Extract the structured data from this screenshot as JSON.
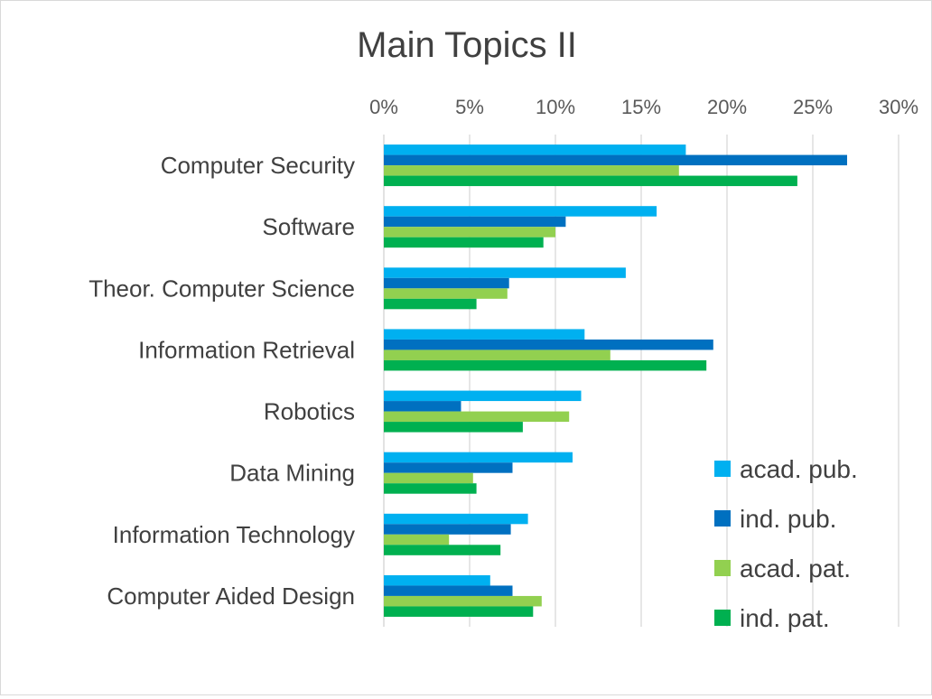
{
  "chart_data": {
    "type": "bar",
    "orientation": "horizontal",
    "title": "Main Topics II",
    "xlabel": "",
    "ylabel": "",
    "xlim": [
      0,
      30
    ],
    "ticks": [
      "0%",
      "5%",
      "10%",
      "15%",
      "20%",
      "25%",
      "30%"
    ],
    "tick_values": [
      0,
      5,
      10,
      15,
      20,
      25,
      30
    ],
    "grid": true,
    "axis_position": "top",
    "legend_position": "bottom-right",
    "categories": [
      "Computer Security",
      "Software",
      "Theor. Computer Science",
      "Information Retrieval",
      "Robotics",
      "Data Mining",
      "Information Technology",
      "Computer Aided Design"
    ],
    "series": [
      {
        "name": "acad. pub.",
        "color": "#00B0F0",
        "values": [
          17.6,
          15.9,
          14.1,
          11.7,
          11.5,
          11.0,
          8.4,
          6.2
        ]
      },
      {
        "name": "ind. pub.",
        "color": "#0070C0",
        "values": [
          27.0,
          10.6,
          7.3,
          19.2,
          4.5,
          7.5,
          7.4,
          7.5
        ]
      },
      {
        "name": "acad. pat.",
        "color": "#92D050",
        "values": [
          17.2,
          10.0,
          7.2,
          13.2,
          10.8,
          5.2,
          3.8,
          9.2
        ]
      },
      {
        "name": "ind. pat.",
        "color": "#00B050",
        "values": [
          24.1,
          9.3,
          5.4,
          18.8,
          8.1,
          5.4,
          6.8,
          8.7
        ]
      }
    ]
  }
}
